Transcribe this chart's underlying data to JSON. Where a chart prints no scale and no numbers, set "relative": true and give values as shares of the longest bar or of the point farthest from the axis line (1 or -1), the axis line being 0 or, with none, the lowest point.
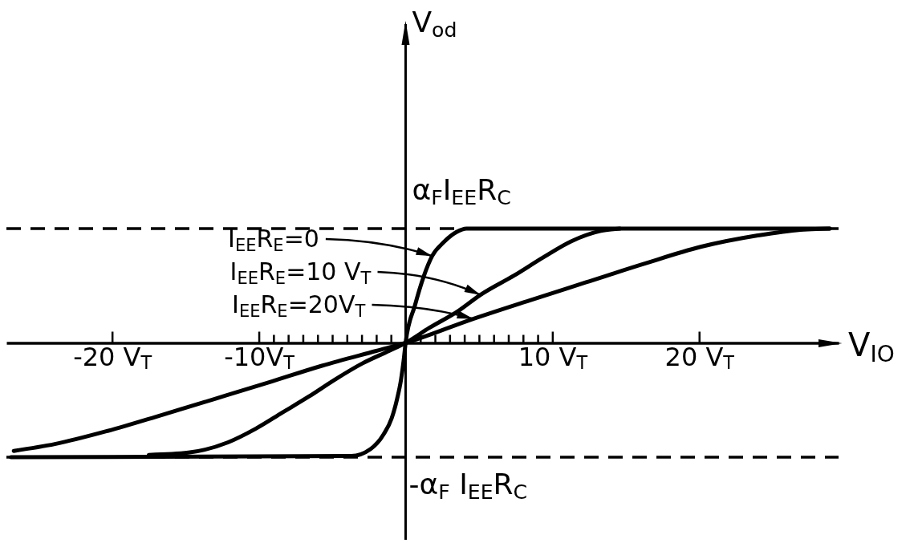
{
  "chart_data": {
    "type": "line",
    "relative": true,
    "xlabel": "V$_{IO}$",
    "annotations": [
      "V$_{od}$"
    ],
    "legend": "top left",
    "xlim": [
      -27.2,
      29.5
    ],
    "xticks": [
      {
        "value": -20,
        "label": "-20 V$_{T}$"
      },
      {
        "value": -10,
        "label": "-10V$_{T}$"
      },
      {
        "value": -9,
        "label": null
      },
      {
        "value": -8,
        "label": null
      },
      {
        "value": -7,
        "label": null
      },
      {
        "value": -6,
        "label": null
      },
      {
        "value": -5,
        "label": null
      },
      {
        "value": -4,
        "label": null
      },
      {
        "value": -3,
        "label": null
      },
      {
        "value": -2,
        "label": null
      },
      {
        "value": -1,
        "label": null
      },
      {
        "value": 1,
        "label": null
      },
      {
        "value": 2,
        "label": null
      },
      {
        "value": 3,
        "label": null
      },
      {
        "value": 4,
        "label": null
      },
      {
        "value": 5,
        "label": null
      },
      {
        "value": 6,
        "label": null
      },
      {
        "value": 7,
        "label": null
      },
      {
        "value": 8,
        "label": null
      },
      {
        "value": 9,
        "label": null
      },
      {
        "value": 10,
        "label": "10 V$_{T}$"
      },
      {
        "value": 20,
        "label": "20 V$_{T}$"
      }
    ],
    "ref_lines": [
      {
        "axis": "y",
        "value": 1,
        "label": "α$_{F}$I$_{EE}$R$_{C}$",
        "line_style": "dashed"
      },
      {
        "axis": "y",
        "value": -1,
        "label": "-α$_{F}$ I$_{EE}$R$_{C}$",
        "line_style": "dashed"
      }
    ],
    "series": [
      {
        "name": "I$_{EE}$R$_{E}$=0",
        "color": "#000000",
        "x": [
          -26.9,
          -3.7,
          -2.4,
          -1.5,
          -0.95,
          -0.58,
          -0.31,
          -0.13,
          0,
          0.64,
          1.23,
          1.81,
          2.59,
          3.47,
          4.15,
          28.9
        ],
        "values": [
          -1,
          -0.99,
          -0.93,
          -0.8,
          -0.66,
          -0.49,
          -0.32,
          -0.15,
          0,
          0.33,
          0.58,
          0.76,
          0.88,
          0.97,
          1,
          1
        ]
      },
      {
        "name": "I$_{EE}$R$_{E}$=10 V$_{T}$",
        "color": "#000000",
        "x": [
          -17.5,
          -14.8,
          -12.1,
          -10.2,
          -8.4,
          -6.6,
          -4.8,
          -2.95,
          -1.13,
          0,
          1.6,
          3.6,
          5.1,
          7.4,
          9.4,
          11.3,
          13.3,
          14.6
        ],
        "values": [
          -0.98,
          -0.96,
          -0.87,
          -0.75,
          -0.61,
          -0.47,
          -0.32,
          -0.18,
          -0.07,
          0,
          0.13,
          0.28,
          0.42,
          0.59,
          0.75,
          0.89,
          0.98,
          1
        ]
      },
      {
        "name": "I$_{EE}$R$_{E}$=20V$_{T}$",
        "color": "#000000",
        "x": [
          -26.7,
          -23.9,
          -20.3,
          -16.6,
          -13,
          -9.3,
          -5.7,
          -2,
          0,
          4.6,
          8.4,
          12.3,
          16.2,
          20.1,
          24,
          26.9,
          28.9
        ],
        "values": [
          -0.945,
          -0.885,
          -0.77,
          -0.63,
          -0.49,
          -0.345,
          -0.2,
          -0.07,
          0,
          0.21,
          0.37,
          0.53,
          0.69,
          0.84,
          0.94,
          0.99,
          1
        ]
      }
    ]
  }
}
